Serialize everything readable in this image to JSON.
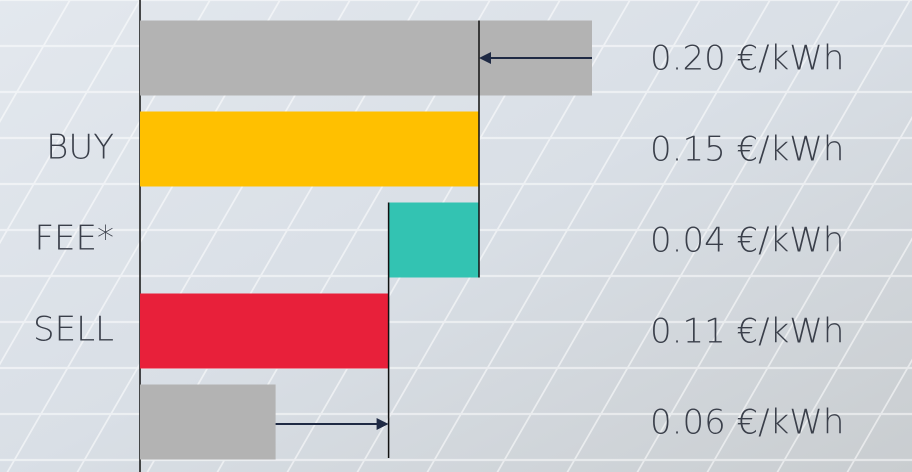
{
  "chart_data": {
    "type": "bar",
    "orientation": "horizontal",
    "categories": [
      null,
      "BUY",
      "FEE*",
      "SELL",
      null
    ],
    "values": [
      0.2,
      0.15,
      0.04,
      0.11,
      0.06
    ],
    "starts": [
      0,
      0,
      0.11,
      0,
      0
    ],
    "value_labels": [
      "0.20 €/kWh",
      "0.15 €/kWh",
      "0.04 €/kWh",
      "0.11 €/kWh",
      "0.06 €/kWh"
    ],
    "colors": [
      "#b3b3b3",
      "#ffc000",
      "#33c3b2",
      "#e8203a",
      "#b3b3b3"
    ],
    "xlim": [
      0,
      0.2
    ]
  }
}
